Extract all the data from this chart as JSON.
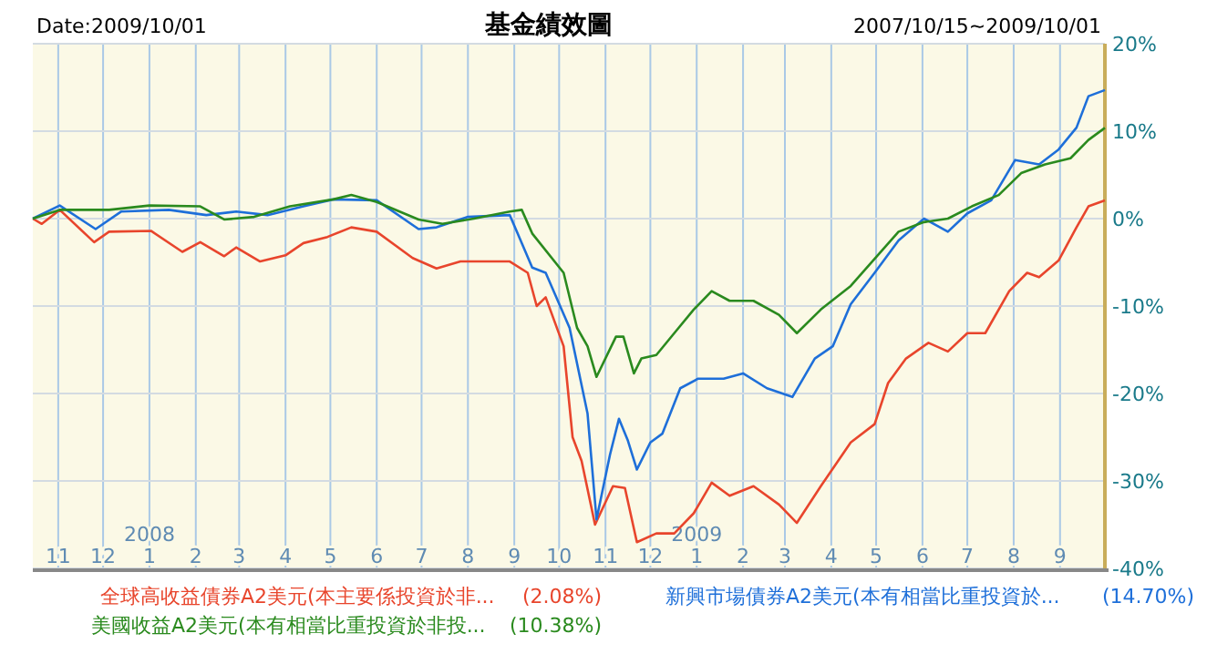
{
  "chart_data": {
    "type": "line",
    "title": "基金績效圖",
    "subtitle": "Date:2009/10/01",
    "annotations": [
      "2007/10/15~2009/10/01"
    ],
    "xlim": [
      "2007-10-15",
      "2009-10-01"
    ],
    "xticks": [
      {
        "value": "2007-11-01",
        "label": "11"
      },
      {
        "value": "2007-12-01",
        "label": "12"
      },
      {
        "value": "2008-01-01",
        "label": "2008\n1"
      },
      {
        "value": "2008-02-01",
        "label": "2"
      },
      {
        "value": "2008-03-01",
        "label": "3"
      },
      {
        "value": "2008-04-01",
        "label": "4"
      },
      {
        "value": "2008-05-01",
        "label": "5"
      },
      {
        "value": "2008-06-01",
        "label": "6"
      },
      {
        "value": "2008-07-01",
        "label": "7"
      },
      {
        "value": "2008-08-01",
        "label": "8"
      },
      {
        "value": "2008-09-01",
        "label": "9"
      },
      {
        "value": "2008-10-01",
        "label": "10"
      },
      {
        "value": "2008-11-01",
        "label": "11"
      },
      {
        "value": "2008-12-01",
        "label": "12"
      },
      {
        "value": "2009-01-01",
        "label": "2009\n1"
      },
      {
        "value": "2009-02-01",
        "label": "2"
      },
      {
        "value": "2009-03-01",
        "label": "3"
      },
      {
        "value": "2009-04-01",
        "label": "4"
      },
      {
        "value": "2009-05-01",
        "label": "5"
      },
      {
        "value": "2009-06-01",
        "label": "6"
      },
      {
        "value": "2009-07-01",
        "label": "7"
      },
      {
        "value": "2009-08-01",
        "label": "8"
      },
      {
        "value": "2009-09-01",
        "label": "9"
      }
    ],
    "ylim": [
      -40,
      20
    ],
    "yticks": [
      {
        "value": 20,
        "label": "20%"
      },
      {
        "value": 10,
        "label": "10%"
      },
      {
        "value": 0,
        "label": "0%"
      },
      {
        "value": -10,
        "label": "-10%"
      },
      {
        "value": -20,
        "label": "-20%"
      },
      {
        "value": -30,
        "label": "-30%"
      },
      {
        "value": -40,
        "label": "-40%"
      }
    ],
    "grid": true,
    "legend": "bottom",
    "marker": "none",
    "line_style": "solid",
    "series": [
      {
        "name": "全球高收益債券A2美元(本主要係投資於非... (2.08%)",
        "color": "#e8452c",
        "x": [
          "2007-10-15",
          "2007-10-21",
          "2007-11-02",
          "2007-11-25",
          "2007-12-05",
          "2008-01-02",
          "2008-01-23",
          "2008-02-04",
          "2008-02-20",
          "2008-02-28",
          "2008-03-15",
          "2008-04-01",
          "2008-04-13",
          "2008-04-29",
          "2008-05-15",
          "2008-06-01",
          "2008-06-25",
          "2008-07-11",
          "2008-07-27",
          "2008-08-29",
          "2008-09-10",
          "2008-09-16",
          "2008-09-22",
          "2008-10-04",
          "2008-10-10",
          "2008-10-16",
          "2008-10-25",
          "2008-11-06",
          "2008-11-14",
          "2008-11-22",
          "2008-12-05",
          "2008-12-17",
          "2008-12-30",
          "2009-01-11",
          "2009-01-23",
          "2009-02-08",
          "2009-02-25",
          "2009-03-09",
          "2009-03-25",
          "2009-04-14",
          "2009-04-30",
          "2009-05-09",
          "2009-05-21",
          "2009-06-05",
          "2009-06-18",
          "2009-07-01",
          "2009-07-13",
          "2009-07-29",
          "2009-08-10",
          "2009-08-18",
          "2009-08-31",
          "2009-09-12",
          "2009-09-20",
          "2009-10-01"
        ],
        "values": [
          0,
          -0.6,
          1.0,
          -2.7,
          -1.5,
          -1.4,
          -3.8,
          -2.7,
          -4.3,
          -3.3,
          -4.9,
          -4.2,
          -2.8,
          -2.1,
          -1.0,
          -1.5,
          -4.5,
          -5.7,
          -4.9,
          -4.9,
          -6.2,
          -10,
          -9,
          -14.6,
          -25,
          -27.7,
          -35,
          -30.6,
          -30.8,
          -37,
          -36,
          -36,
          -33.7,
          -30.2,
          -31.7,
          -30.6,
          -32.7,
          -34.8,
          -30.6,
          -25.6,
          -23.5,
          -18.8,
          -16,
          -14.2,
          -15.2,
          -13.1,
          -13.1,
          -8.3,
          -6.2,
          -6.7,
          -4.8,
          -1.0,
          1.4,
          2.08
        ]
      },
      {
        "name": "新興市場債券A2美元(本有相當比重投資於... (14.70%)",
        "color": "#1e6fd9",
        "x": [
          "2007-10-15",
          "2007-11-02",
          "2007-11-26",
          "2007-12-13",
          "2008-01-14",
          "2008-02-08",
          "2008-02-28",
          "2008-03-20",
          "2008-04-13",
          "2008-05-03",
          "2008-06-01",
          "2008-06-29",
          "2008-07-11",
          "2008-08-01",
          "2008-08-29",
          "2008-09-13",
          "2008-09-22",
          "2008-10-08",
          "2008-10-20",
          "2008-10-26",
          "2008-11-04",
          "2008-11-10",
          "2008-11-16",
          "2008-11-22",
          "2008-12-01",
          "2008-12-09",
          "2008-12-21",
          "2009-01-02",
          "2009-01-19",
          "2009-02-01",
          "2009-02-17",
          "2009-03-06",
          "2009-03-21",
          "2009-04-02",
          "2009-04-14",
          "2009-04-30",
          "2009-05-16",
          "2009-06-02",
          "2009-06-18",
          "2009-07-01",
          "2009-07-17",
          "2009-08-02",
          "2009-08-18",
          "2009-08-31",
          "2009-09-12",
          "2009-09-20",
          "2009-10-01"
        ],
        "values": [
          0,
          1.5,
          -1.2,
          0.8,
          1.0,
          0.4,
          0.8,
          0.4,
          1.4,
          2.2,
          2.1,
          -1.2,
          -1.0,
          0.2,
          0.4,
          -5.6,
          -6.2,
          -12.5,
          -22.3,
          -34.4,
          -27,
          -22.9,
          -25.4,
          -28.7,
          -25.6,
          -24.6,
          -19.4,
          -18.3,
          -18.3,
          -17.7,
          -19.4,
          -20.4,
          -16,
          -14.6,
          -9.8,
          -6.2,
          -2.5,
          0,
          -1.5,
          0.6,
          2.1,
          6.7,
          6.2,
          7.9,
          10.4,
          14,
          14.7
        ]
      },
      {
        "name": "美國收益A2美元(本有相當比重投資於非投... (10.38%)",
        "color": "#2a8a1e",
        "x": [
          "2007-10-15",
          "2007-11-02",
          "2007-12-05",
          "2008-01-01",
          "2008-02-04",
          "2008-02-20",
          "2008-03-11",
          "2008-04-04",
          "2008-05-03",
          "2008-05-15",
          "2008-06-01",
          "2008-06-29",
          "2008-07-15",
          "2008-08-05",
          "2008-08-29",
          "2008-09-06",
          "2008-09-13",
          "2008-10-04",
          "2008-10-13",
          "2008-10-20",
          "2008-10-26",
          "2008-11-08",
          "2008-11-13",
          "2008-11-20",
          "2008-11-25",
          "2008-12-05",
          "2008-12-17",
          "2008-12-30",
          "2009-01-11",
          "2009-01-23",
          "2009-02-08",
          "2009-02-25",
          "2009-03-09",
          "2009-03-25",
          "2009-04-14",
          "2009-04-30",
          "2009-05-16",
          "2009-06-02",
          "2009-06-18",
          "2009-07-04",
          "2009-07-22",
          "2009-08-06",
          "2009-08-22",
          "2009-09-08",
          "2009-09-20",
          "2009-10-01"
        ],
        "values": [
          0,
          1.0,
          1.0,
          1.5,
          1.4,
          -0.1,
          0.2,
          1.4,
          2.2,
          2.7,
          1.9,
          -0.1,
          -0.6,
          0,
          0.8,
          1.0,
          -1.7,
          -6.2,
          -12.5,
          -14.6,
          -18.1,
          -13.5,
          -13.5,
          -17.7,
          -16,
          -15.6,
          -13.1,
          -10.4,
          -8.3,
          -9.4,
          -9.4,
          -11,
          -13.1,
          -10.4,
          -7.7,
          -4.6,
          -1.5,
          -0.4,
          0,
          1.4,
          2.7,
          5.2,
          6.2,
          6.9,
          9,
          10.38
        ]
      }
    ]
  }
}
